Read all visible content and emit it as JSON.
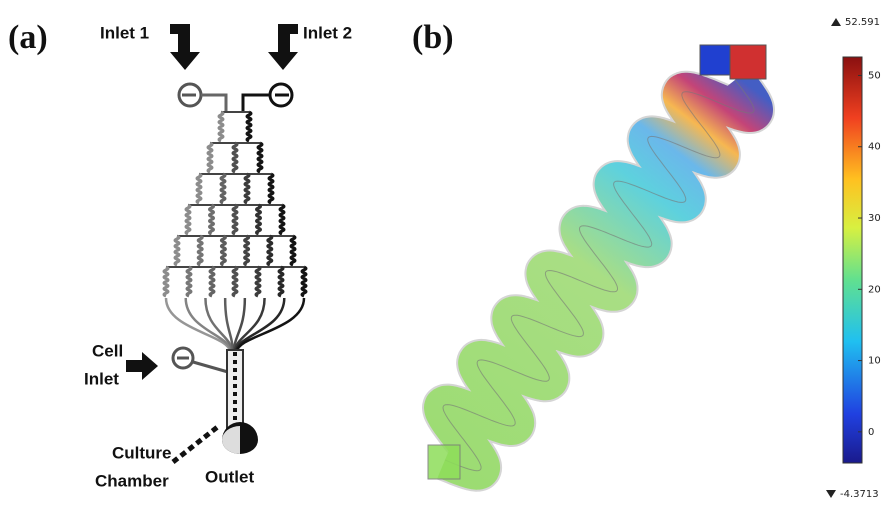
{
  "panel_a": {
    "label": "(a)",
    "inlet_1": "Inlet 1",
    "inlet_2": "Inlet 2",
    "cell_inlet": [
      "Cell",
      "Inlet"
    ],
    "culture_chamber": [
      "Culture",
      "Chamber"
    ],
    "outlet": "Outlet"
  },
  "panel_b": {
    "label": "(b)",
    "colorbar": {
      "min": -4.3713,
      "max": 52.591,
      "ticks": [
        0,
        10,
        20,
        30,
        40,
        50
      ]
    }
  }
}
